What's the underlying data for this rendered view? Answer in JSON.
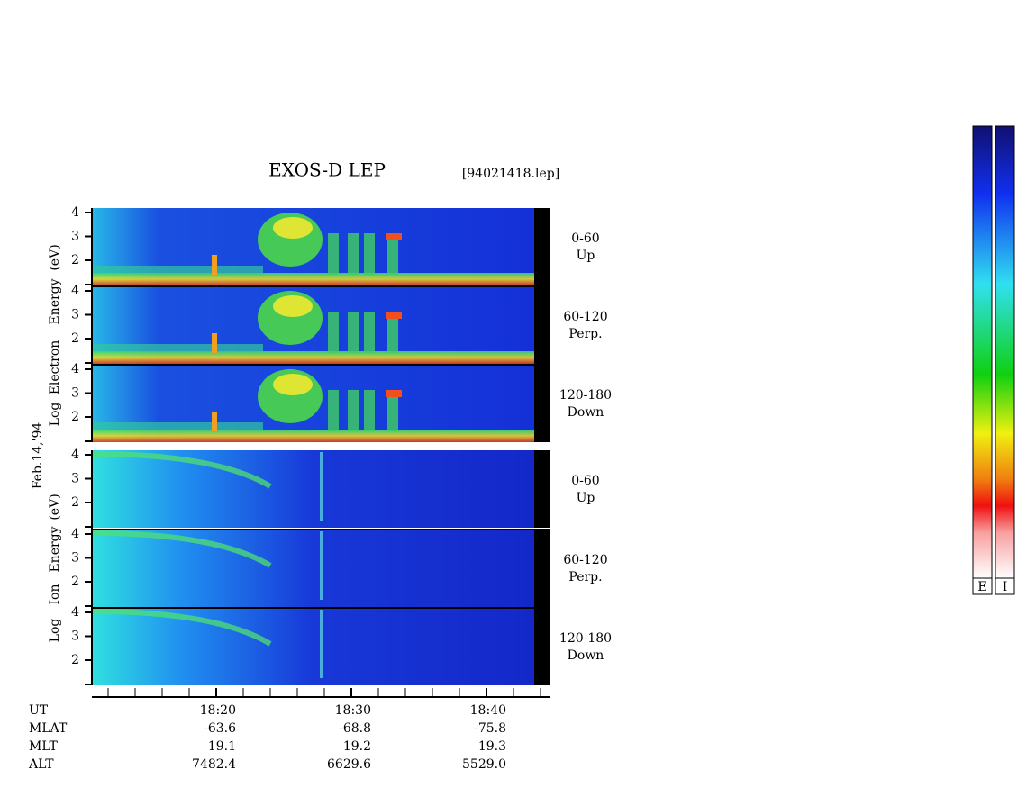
{
  "header": {
    "title": "EXOS-D LEP",
    "file": "[94021418.lep]"
  },
  "date": "Feb.14,'94",
  "electron": {
    "label_words": [
      "Log",
      "Electron",
      "Energy",
      "(eV)"
    ],
    "panels": [
      {
        "angle": "0-60",
        "direction": "Up",
        "ticks": [
          "4",
          "3",
          "2"
        ]
      },
      {
        "angle": "60-120",
        "direction": "Perp.",
        "ticks": [
          "4",
          "3",
          "2"
        ]
      },
      {
        "angle": "120-180",
        "direction": "Down",
        "ticks": [
          "4",
          "3",
          "2"
        ]
      }
    ]
  },
  "ion": {
    "label_words": [
      "Log",
      "Ion",
      "Energy",
      "(eV)"
    ],
    "panels": [
      {
        "angle": "0-60",
        "direction": "Up",
        "ticks": [
          "4",
          "3",
          "2"
        ]
      },
      {
        "angle": "60-120",
        "direction": "Perp.",
        "ticks": [
          "4",
          "3",
          "2"
        ]
      },
      {
        "angle": "120-180",
        "direction": "Down",
        "ticks": [
          "4",
          "3",
          "2"
        ]
      }
    ]
  },
  "ephemeris": [
    {
      "label": "UT",
      "values": [
        "18:20",
        "18:30",
        "18:40"
      ]
    },
    {
      "label": "MLAT",
      "values": [
        "-63.6",
        "-68.8",
        "-75.8"
      ]
    },
    {
      "label": "MLT",
      "values": [
        "19.1",
        "19.2",
        "19.3"
      ]
    },
    {
      "label": "ALT",
      "values": [
        "7482.4",
        "6629.6",
        "5529.0"
      ]
    }
  ],
  "colorbars": [
    "E",
    "I"
  ]
}
